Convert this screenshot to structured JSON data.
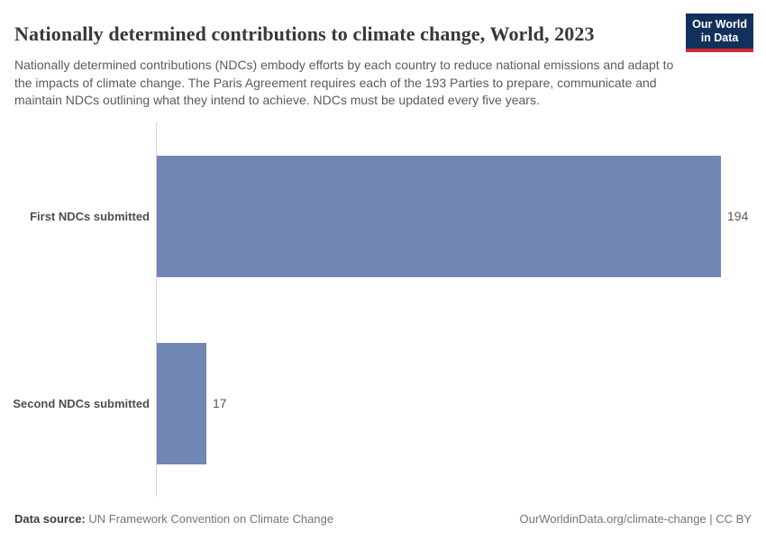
{
  "header": {
    "title": "Nationally determined contributions to climate change, World, 2023",
    "subtitle": "Nationally determined contributions (NDCs) embody efforts by each country to reduce national emissions and adapt to the impacts of climate change. The Paris Agreement requires each of the 193 Parties to prepare, communicate and maintain NDCs outlining what they intend to achieve. NDCs must be updated every five years.",
    "logo": {
      "line1": "Our World",
      "line2": "in Data"
    }
  },
  "chart_data": {
    "type": "bar",
    "orientation": "horizontal",
    "categories": [
      "First NDCs submitted",
      "Second NDCs submitted"
    ],
    "values": [
      194,
      17
    ],
    "xlim": [
      0,
      194
    ],
    "grid": false,
    "legend": "none",
    "title": "Nationally determined contributions to climate change, World, 2023",
    "xlabel": "",
    "ylabel": ""
  },
  "colors": {
    "bar": "#6f87b2",
    "axis_line": "#d4d4d4",
    "logo_background": "#12305c",
    "logo_accent": "#ce2b37",
    "title_text": "#383838",
    "subtitle_text": "#5b5b5b"
  },
  "footer": {
    "datasource_label": "Data source:",
    "datasource_value": "UN Framework Convention on Climate Change",
    "attribution": "OurWorldinData.org/climate-change | CC BY"
  }
}
